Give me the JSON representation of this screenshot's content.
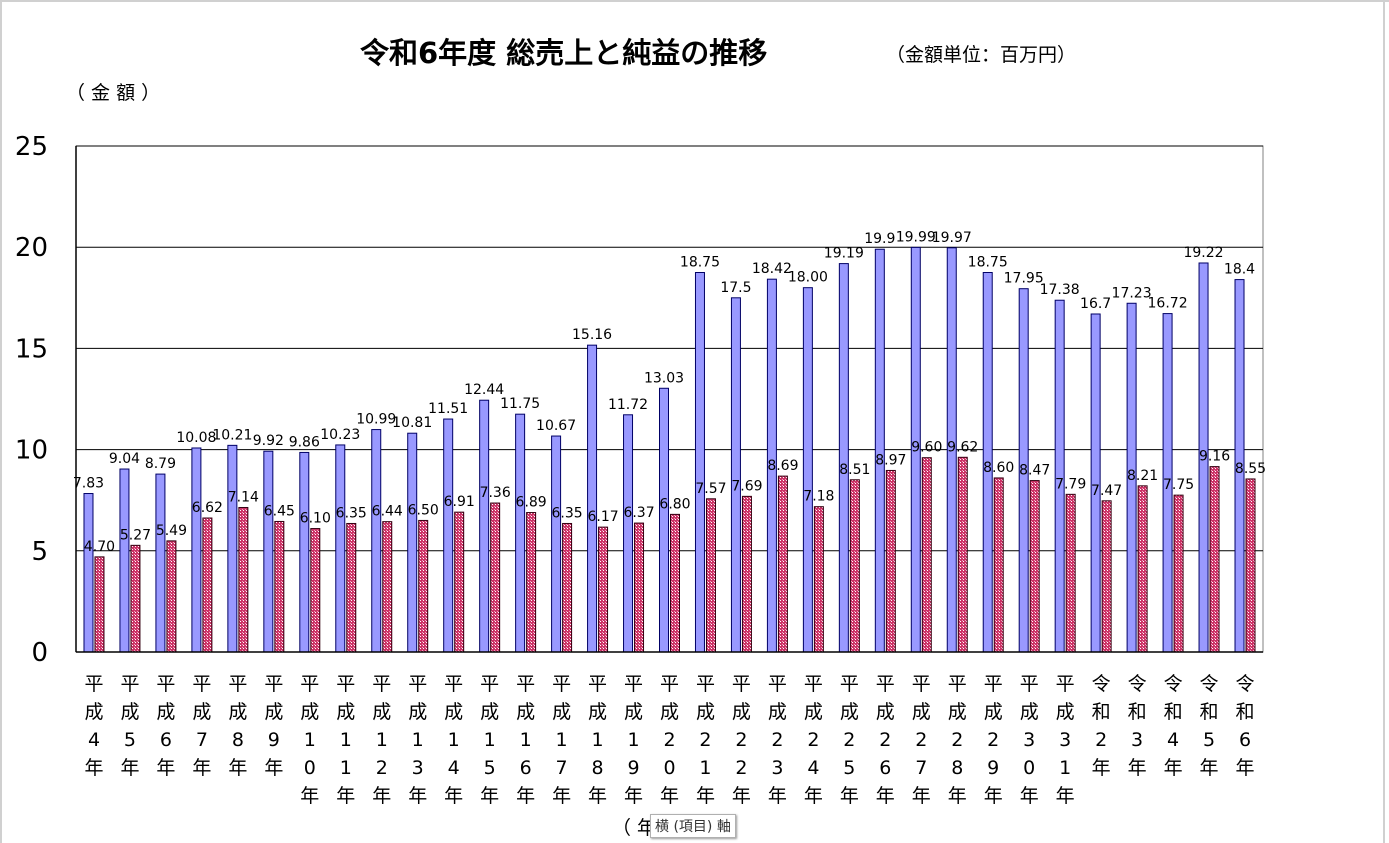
{
  "chart_data": {
    "type": "bar",
    "title": "令和6年度 総売上と純益の推移",
    "unit_note": "（金額単位：百万円）",
    "ylabel": "（ 金 額 ）",
    "xlabel": "（ 年",
    "tooltip": "横 (項目) 軸",
    "ylim": [
      0,
      25
    ],
    "yticks": [
      "0",
      "5",
      "10",
      "15",
      "20",
      "25"
    ],
    "grid": true,
    "categories": [
      "平成4年",
      "平成5年",
      "平成6年",
      "平成7年",
      "平成8年",
      "平成9年",
      "平成10年",
      "平成11年",
      "平成12年",
      "平成13年",
      "平成14年",
      "平成15年",
      "平成16年",
      "平成17年",
      "平成18年",
      "平成19年",
      "平成20年",
      "平成21年",
      "平成22年",
      "平成23年",
      "平成24年",
      "平成25年",
      "平成26年",
      "平成27年",
      "平成28年",
      "平成29年",
      "平成30年",
      "平成31年",
      "令和2年",
      "令和3年",
      "令和4年",
      "令和5年",
      "令和6年"
    ],
    "series": [
      {
        "color": "#9999ff",
        "values": [
          7.83,
          9.04,
          8.79,
          10.08,
          10.21,
          9.92,
          9.86,
          10.23,
          10.99,
          10.81,
          11.51,
          12.44,
          11.75,
          10.67,
          15.16,
          11.72,
          13.03,
          18.75,
          17.5,
          18.42,
          18.0,
          19.19,
          19.9,
          19.99,
          19.97,
          18.75,
          17.95,
          17.38,
          16.7,
          17.23,
          16.72,
          19.22,
          18.4
        ],
        "labels": [
          "7.83",
          "9.04",
          "8.79",
          "10.08",
          "10.21",
          "9.92",
          "9.86",
          "10.23",
          "10.99",
          "10.81",
          "11.51",
          "12.44",
          "11.75",
          "10.67",
          "15.16",
          "11.72",
          "13.03",
          "18.75",
          "17.5",
          "18.42",
          "18.00",
          "19.19",
          "19.9",
          "19.99",
          "19.97",
          "18.75",
          "17.95",
          "17.38",
          "16.7",
          "17.23",
          "16.72",
          "19.22",
          "18.4"
        ]
      },
      {
        "color": "#cc3366",
        "values": [
          4.7,
          5.27,
          5.49,
          6.62,
          7.14,
          6.45,
          6.1,
          6.35,
          6.44,
          6.5,
          6.91,
          7.36,
          6.89,
          6.35,
          6.17,
          6.37,
          6.8,
          7.57,
          7.69,
          8.69,
          7.18,
          8.51,
          8.97,
          9.6,
          9.62,
          8.6,
          8.47,
          7.79,
          7.47,
          8.21,
          7.75,
          9.16,
          8.55
        ],
        "labels": [
          "4.70",
          "5.27",
          "5.49",
          "6.62",
          "7.14",
          "6.45",
          "6.10",
          "6.35",
          "6.44",
          "6.50",
          "6.91",
          "7.36",
          "6.89",
          "6.35",
          "6.17",
          "6.37",
          "6.80",
          "7.57",
          "7.69",
          "8.69",
          "7.18",
          "8.51",
          "8.97",
          "9.60",
          "9.62",
          "8.60",
          "8.47",
          "7.79",
          "7.47",
          "8.21",
          "7.75",
          "9.16",
          "8.55"
        ]
      }
    ]
  }
}
